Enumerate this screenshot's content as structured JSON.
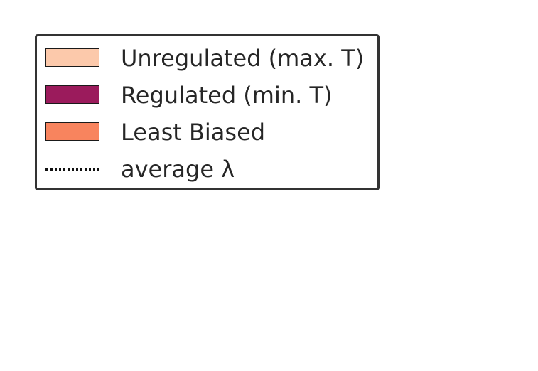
{
  "chart_data": {
    "type": "legend",
    "legend": {
      "entries": [
        {
          "label": "Unregulated (max. T)",
          "kind": "patch",
          "color": "#fcc9ab"
        },
        {
          "label": "Regulated (min. T)",
          "kind": "patch",
          "color": "#9b1b5c"
        },
        {
          "label": "Least Biased",
          "kind": "patch",
          "color": "#f8845e"
        },
        {
          "label": "average λ",
          "kind": "line",
          "style": "dotted",
          "color": "#111111"
        }
      ],
      "placement": "top-left"
    }
  }
}
